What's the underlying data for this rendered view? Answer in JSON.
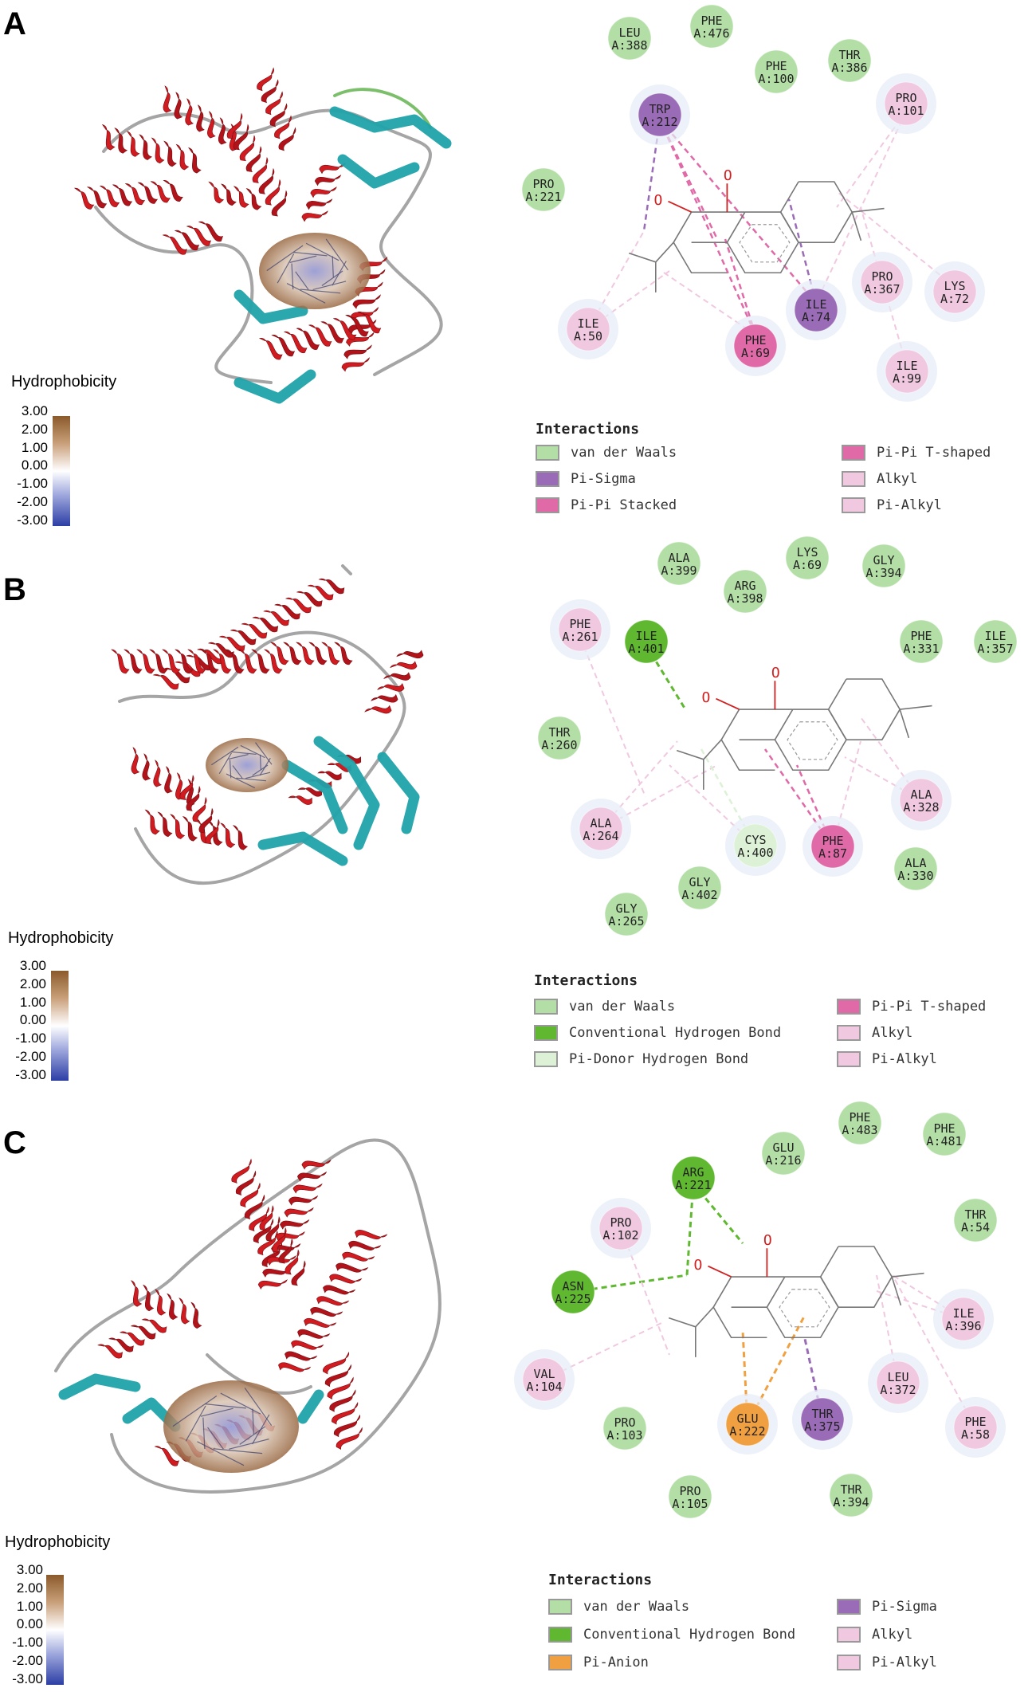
{
  "colors": {
    "vdw": "#b3dfa6",
    "hbond": "#5fb830",
    "pidonor": "#dcf1d6",
    "pisigma": "#9a6cb8",
    "pistack": "#e06aa8",
    "alkyl": "#f0c8e0",
    "anion": "#f0a040"
  },
  "panels": [
    {
      "label": "A",
      "hydro_title": "Hydrophobicity",
      "scale": [
        "3.00",
        "2.00",
        "1.00",
        "0.00",
        "-1.00",
        "-2.00",
        "-3.00"
      ],
      "interactions_title": "Interactions",
      "legend": [
        {
          "text": "van der Waals",
          "type": "vdw"
        },
        {
          "text": "Pi-Sigma",
          "type": "pisigma"
        },
        {
          "text": "Pi-Pi Stacked",
          "type": "pistack"
        },
        {
          "text": "Pi-Pi T-shaped",
          "type": "pistack"
        },
        {
          "text": "Alkyl",
          "type": "alkyl"
        },
        {
          "text": "Pi-Alkyl",
          "type": "alkyl"
        }
      ],
      "residues": [
        {
          "name": "LEU",
          "id": "A:388",
          "type": "vdw"
        },
        {
          "name": "PHE",
          "id": "A:476",
          "type": "vdw"
        },
        {
          "name": "PHE",
          "id": "A:100",
          "type": "vdw"
        },
        {
          "name": "THR",
          "id": "A:386",
          "type": "vdw"
        },
        {
          "name": "TRP",
          "id": "A:212",
          "type": "pisigma"
        },
        {
          "name": "PRO",
          "id": "A:101",
          "type": "alkyl"
        },
        {
          "name": "PRO",
          "id": "A:221",
          "type": "vdw"
        },
        {
          "name": "PRO",
          "id": "A:367",
          "type": "alkyl"
        },
        {
          "name": "LYS",
          "id": "A:72",
          "type": "alkyl"
        },
        {
          "name": "ILE",
          "id": "A:74",
          "type": "pisigma"
        },
        {
          "name": "ILE",
          "id": "A:50",
          "type": "alkyl"
        },
        {
          "name": "PHE",
          "id": "A:69",
          "type": "pistack"
        },
        {
          "name": "ILE",
          "id": "A:99",
          "type": "alkyl"
        }
      ]
    },
    {
      "label": "B",
      "hydro_title": "Hydrophobicity",
      "scale": [
        "3.00",
        "2.00",
        "1.00",
        "0.00",
        "-1.00",
        "-2.00",
        "-3.00"
      ],
      "interactions_title": "Interactions",
      "legend": [
        {
          "text": "van der Waals",
          "type": "vdw"
        },
        {
          "text": "Conventional Hydrogen Bond",
          "type": "hbond"
        },
        {
          "text": "Pi-Donor Hydrogen Bond",
          "type": "pidonor"
        },
        {
          "text": "Pi-Pi T-shaped",
          "type": "pistack"
        },
        {
          "text": "Alkyl",
          "type": "alkyl"
        },
        {
          "text": "Pi-Alkyl",
          "type": "alkyl"
        }
      ],
      "residues": [
        {
          "name": "ALA",
          "id": "A:399",
          "type": "vdw"
        },
        {
          "name": "LYS",
          "id": "A:69",
          "type": "vdw"
        },
        {
          "name": "GLY",
          "id": "A:394",
          "type": "vdw"
        },
        {
          "name": "ARG",
          "id": "A:398",
          "type": "vdw"
        },
        {
          "name": "PHE",
          "id": "A:261",
          "type": "alkyl"
        },
        {
          "name": "ILE",
          "id": "A:401",
          "type": "hbond"
        },
        {
          "name": "PHE",
          "id": "A:331",
          "type": "vdw"
        },
        {
          "name": "ILE",
          "id": "A:357",
          "type": "vdw"
        },
        {
          "name": "THR",
          "id": "A:260",
          "type": "vdw"
        },
        {
          "name": "ALA",
          "id": "A:328",
          "type": "alkyl"
        },
        {
          "name": "ALA",
          "id": "A:264",
          "type": "alkyl"
        },
        {
          "name": "CYS",
          "id": "A:400",
          "type": "pidonor"
        },
        {
          "name": "PHE",
          "id": "A:87",
          "type": "pistack"
        },
        {
          "name": "ALA",
          "id": "A:330",
          "type": "vdw"
        },
        {
          "name": "GLY",
          "id": "A:402",
          "type": "vdw"
        },
        {
          "name": "GLY",
          "id": "A:265",
          "type": "vdw"
        }
      ]
    },
    {
      "label": "C",
      "hydro_title": "Hydrophobicity",
      "scale": [
        "3.00",
        "2.00",
        "1.00",
        "0.00",
        "-1.00",
        "-2.00",
        "-3.00"
      ],
      "interactions_title": "Interactions",
      "legend": [
        {
          "text": "van der Waals",
          "type": "vdw"
        },
        {
          "text": "Conventional Hydrogen Bond",
          "type": "hbond"
        },
        {
          "text": "Pi-Anion",
          "type": "anion"
        },
        {
          "text": "Pi-Sigma",
          "type": "pisigma"
        },
        {
          "text": "Alkyl",
          "type": "alkyl"
        },
        {
          "text": "Pi-Alkyl",
          "type": "alkyl"
        }
      ],
      "residues": [
        {
          "name": "PHE",
          "id": "A:483",
          "type": "vdw"
        },
        {
          "name": "PHE",
          "id": "A:481",
          "type": "vdw"
        },
        {
          "name": "ARG",
          "id": "A:221",
          "type": "hbond"
        },
        {
          "name": "GLU",
          "id": "A:216",
          "type": "vdw"
        },
        {
          "name": "PRO",
          "id": "A:102",
          "type": "alkyl"
        },
        {
          "name": "THR",
          "id": "A:54",
          "type": "vdw"
        },
        {
          "name": "ASN",
          "id": "A:225",
          "type": "hbond"
        },
        {
          "name": "ILE",
          "id": "A:396",
          "type": "alkyl"
        },
        {
          "name": "VAL",
          "id": "A:104",
          "type": "alkyl"
        },
        {
          "name": "LEU",
          "id": "A:372",
          "type": "alkyl"
        },
        {
          "name": "PHE",
          "id": "A:58",
          "type": "alkyl"
        },
        {
          "name": "PRO",
          "id": "A:103",
          "type": "vdw"
        },
        {
          "name": "GLU",
          "id": "A:222",
          "type": "anion"
        },
        {
          "name": "THR",
          "id": "A:375",
          "type": "pisigma"
        },
        {
          "name": "PRO",
          "id": "A:105",
          "type": "vdw"
        },
        {
          "name": "THR",
          "id": "A:394",
          "type": "vdw"
        }
      ]
    }
  ]
}
